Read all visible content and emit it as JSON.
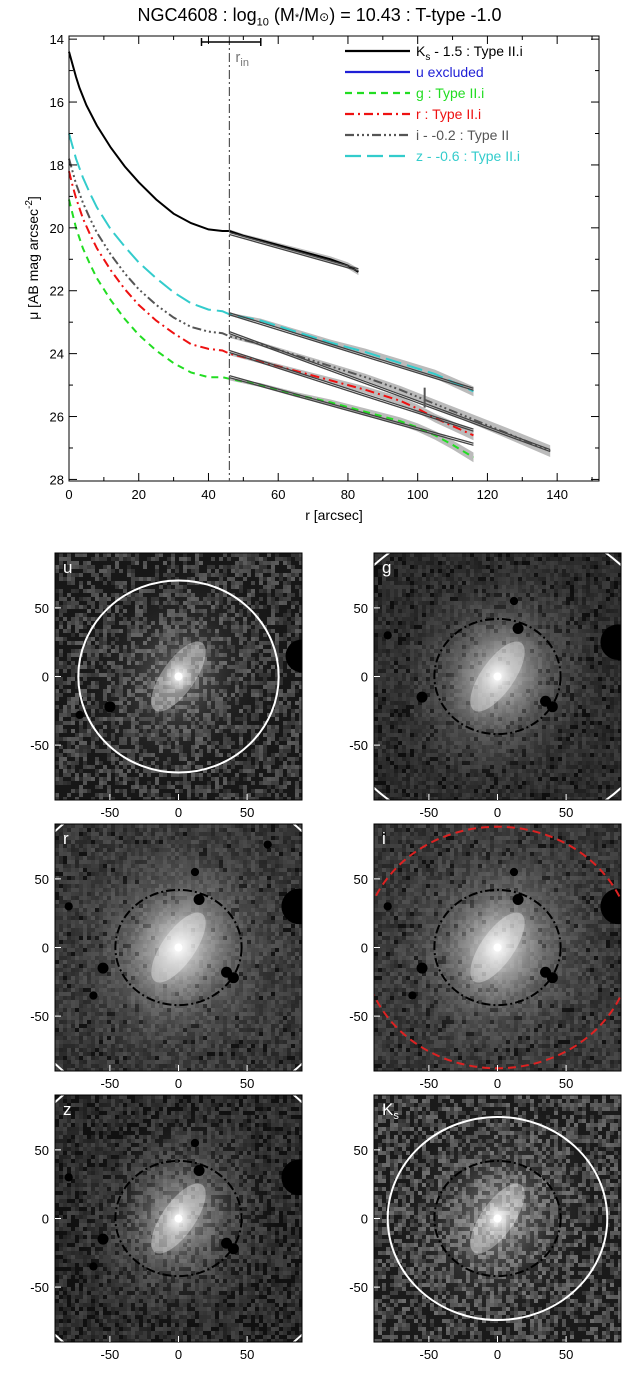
{
  "page": {
    "title": "NGC4608 : log10 (M*/M⊙) = 10.43 : T-type -1.0",
    "title_parts": {
      "a": "NGC4608 : log",
      "sub": "10",
      "b": " (M",
      "c": "/M",
      "d": ") = 10.43 : T-type -1.0"
    }
  },
  "chart_data": [
    {
      "type": "line",
      "title": "NGC4608 : log10 (M*/M⊙) = 10.43 : T-type -1.0",
      "xlabel": "r [arcsec]",
      "ylabel_parts": {
        "a": "μ [AB mag arcsec",
        "sup": "-2",
        "b": "]"
      },
      "ylabel": "μ [AB mag arcsec-2]",
      "xlim": [
        0,
        152
      ],
      "ylim": [
        28.05,
        13.9
      ],
      "y_inverted": true,
      "xticks": [
        0,
        20,
        40,
        60,
        80,
        100,
        120,
        140
      ],
      "yticks": [
        14,
        16,
        18,
        20,
        22,
        24,
        26,
        28
      ],
      "legend_position": "top-right",
      "r_in": {
        "label": "r",
        "sub": "in",
        "x": 46,
        "err": [
          38,
          55
        ]
      },
      "break_marker": {
        "x": 102,
        "y": 25.4
      },
      "series": [
        {
          "name": "Ks - 1.5 : Type II.i",
          "name_parts": {
            "a": "K",
            "sub": "s",
            "b": " - 1.5 : Type II.i"
          },
          "color": "#000000",
          "dash": "",
          "width": 2,
          "x": [
            0,
            1,
            2,
            3,
            5,
            8,
            12,
            16,
            20,
            25,
            30,
            35,
            40,
            44,
            46,
            50,
            55,
            60,
            65,
            70,
            75,
            80,
            83
          ],
          "y": [
            14.4,
            14.8,
            15.2,
            15.55,
            16.1,
            16.75,
            17.45,
            18.05,
            18.55,
            19.1,
            19.55,
            19.85,
            20.05,
            20.1,
            20.1,
            20.25,
            20.4,
            20.55,
            20.7,
            20.85,
            21.0,
            21.2,
            21.4
          ],
          "fit": {
            "x": [
              46,
              83
            ],
            "y": [
              20.15,
              21.3
            ]
          }
        },
        {
          "name": "u excluded",
          "color": "#1f1fd6",
          "dash": "",
          "width": 2,
          "x": [],
          "y": []
        },
        {
          "name": "g : Type II.i",
          "color": "#22dd22",
          "dash": "7,5",
          "width": 2,
          "x": [
            0,
            1,
            2,
            4,
            6,
            8,
            12,
            16,
            20,
            25,
            30,
            35,
            40,
            44,
            46,
            55,
            65,
            75,
            85,
            95,
            100,
            105,
            110,
            116
          ],
          "y": [
            19.1,
            19.55,
            20.0,
            20.65,
            21.15,
            21.6,
            22.3,
            22.9,
            23.4,
            23.9,
            24.3,
            24.6,
            24.75,
            24.75,
            24.8,
            25.0,
            25.3,
            25.55,
            25.85,
            26.15,
            26.35,
            26.6,
            26.9,
            27.3
          ],
          "fit": {
            "x": [
              46,
              116
            ],
            "y": [
              24.7,
              26.85
            ]
          }
        },
        {
          "name": "r : Type II.i",
          "color": "#ee1111",
          "dash": "9,4,2,4",
          "width": 2,
          "x": [
            0,
            1,
            2,
            4,
            6,
            8,
            12,
            16,
            20,
            25,
            30,
            35,
            40,
            44,
            46,
            55,
            65,
            75,
            85,
            95,
            100,
            105,
            110,
            116
          ],
          "y": [
            18.2,
            18.65,
            19.05,
            19.7,
            20.2,
            20.65,
            21.35,
            21.95,
            22.45,
            22.95,
            23.35,
            23.7,
            23.85,
            23.9,
            24.0,
            24.25,
            24.55,
            24.85,
            25.15,
            25.5,
            25.75,
            26.05,
            26.3,
            26.6
          ],
          "fit": {
            "x": [
              46,
              116
            ],
            "y": [
              23.9,
              26.4
            ]
          }
        },
        {
          "name": "i - -0.2 : Type II",
          "color": "#555555",
          "dash": "9,3,2,3,2,3,2,3",
          "width": 2,
          "x": [
            0,
            1,
            2,
            4,
            6,
            8,
            12,
            16,
            20,
            25,
            30,
            35,
            40,
            44,
            46,
            55,
            65,
            75,
            85,
            95,
            105,
            115,
            125,
            138
          ],
          "y": [
            17.8,
            18.2,
            18.6,
            19.2,
            19.7,
            20.15,
            20.85,
            21.45,
            21.95,
            22.45,
            22.85,
            23.15,
            23.3,
            23.35,
            23.45,
            23.7,
            24.05,
            24.4,
            24.75,
            25.15,
            25.6,
            26.05,
            26.5,
            27.1
          ],
          "fit": {
            "x": [
              46,
              138
            ],
            "y": [
              23.3,
              27.05
            ]
          }
        },
        {
          "name": "z - -0.6 : Type II.i",
          "color": "#33cccc",
          "dash": "16,6",
          "width": 2,
          "x": [
            0,
            1,
            2,
            4,
            6,
            8,
            12,
            16,
            20,
            25,
            30,
            35,
            40,
            44,
            46,
            55,
            65,
            75,
            85,
            95,
            105,
            110,
            116
          ],
          "y": [
            17.0,
            17.4,
            17.8,
            18.4,
            18.9,
            19.35,
            20.05,
            20.6,
            21.1,
            21.6,
            22.05,
            22.4,
            22.6,
            22.65,
            22.75,
            22.95,
            23.3,
            23.65,
            23.95,
            24.3,
            24.65,
            24.9,
            25.2
          ],
          "fit": {
            "x": [
              46,
              116
            ],
            "y": [
              22.7,
              25.1
            ]
          }
        }
      ]
    },
    {
      "type": "image-panels",
      "xticks": [
        -50,
        0,
        50
      ],
      "yticks": [
        50,
        0,
        -50
      ],
      "lim": [
        -90,
        90
      ],
      "panels": [
        {
          "label": "u",
          "label_sub": "",
          "mean": 65,
          "bright": 190,
          "core": 0.35,
          "sparse": 0.45,
          "inner_ellipse": false,
          "outer": {
            "a": 73,
            "b": 70,
            "color": "#ffffff",
            "dash": ""
          },
          "masks": [
            [
              90,
              15,
              12
            ],
            [
              -50,
              -22,
              4
            ],
            [
              -72,
              -28,
              3
            ]
          ]
        },
        {
          "label": "g",
          "label_sub": "",
          "mean": 40,
          "bright": 210,
          "core": 0.75,
          "sparse": 0.1,
          "inner_ellipse": true,
          "outer": {
            "a": 127,
            "b": 115,
            "color": "#ffffff",
            "dash": ""
          },
          "masks": [
            [
              88,
              25,
              13
            ],
            [
              15,
              35,
              4
            ],
            [
              12,
              55,
              3
            ],
            [
              -55,
              -15,
              4
            ],
            [
              35,
              -18,
              4
            ],
            [
              40,
              -22,
              4
            ],
            [
              -80,
              30,
              3
            ]
          ]
        },
        {
          "label": "r",
          "label_sub": "",
          "mean": 50,
          "bright": 230,
          "core": 0.9,
          "sparse": 0.05,
          "inner_ellipse": true,
          "outer": {
            "a": 127,
            "b": 120,
            "color": "#ffffff",
            "dash": ""
          },
          "masks": [
            [
              88,
              30,
              13
            ],
            [
              15,
              35,
              4
            ],
            [
              12,
              55,
              3
            ],
            [
              -55,
              -15,
              4
            ],
            [
              35,
              -18,
              4
            ],
            [
              40,
              -22,
              4
            ],
            [
              -80,
              30,
              3
            ],
            [
              -62,
              -35,
              3
            ],
            [
              65,
              75,
              3
            ]
          ]
        },
        {
          "label": "i",
          "label_sub": "",
          "mean": 50,
          "bright": 225,
          "core": 0.85,
          "sparse": 0.06,
          "inner_ellipse": true,
          "outer": {
            "a": 98,
            "b": 88,
            "color": "#dd2222",
            "dash": "8,5"
          },
          "masks": [
            [
              88,
              30,
              13
            ],
            [
              15,
              35,
              4
            ],
            [
              12,
              55,
              3
            ],
            [
              -55,
              -15,
              4
            ],
            [
              35,
              -18,
              4
            ],
            [
              40,
              -22,
              4
            ],
            [
              -80,
              30,
              3
            ],
            [
              -62,
              -35,
              3
            ]
          ]
        },
        {
          "label": "z",
          "label_sub": "",
          "mean": 45,
          "bright": 210,
          "core": 0.6,
          "sparse": 0.25,
          "inner_ellipse": true,
          "outer": {
            "a": 127,
            "b": 120,
            "color": "#ffffff",
            "dash": ""
          },
          "masks": [
            [
              88,
              30,
              13
            ],
            [
              15,
              35,
              4
            ],
            [
              12,
              55,
              3
            ],
            [
              -55,
              -15,
              4
            ],
            [
              35,
              -18,
              4
            ],
            [
              40,
              -22,
              4
            ],
            [
              -80,
              30,
              3
            ],
            [
              -62,
              -35,
              3
            ]
          ]
        },
        {
          "label": "K",
          "label_sub": "s",
          "mean": 75,
          "bright": 215,
          "core": 0.5,
          "sparse": 0.4,
          "inner_ellipse": true,
          "outer": {
            "a": 80,
            "b": 74,
            "color": "#ffffff",
            "dash": ""
          },
          "masks": []
        }
      ]
    }
  ]
}
